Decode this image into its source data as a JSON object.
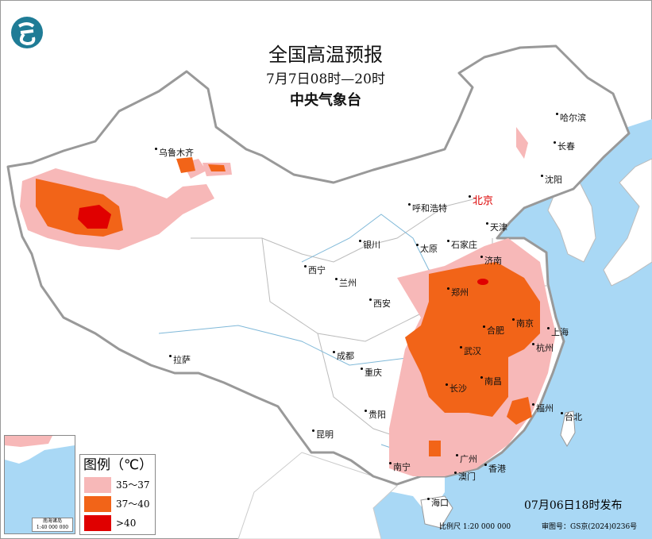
{
  "header": {
    "title": "全国高温预报",
    "period": "7月7日08时—20时",
    "agency": "中央气象台"
  },
  "colors": {
    "ocean": "#a9d8f5",
    "heat_35_37": "#f7b8b8",
    "heat_37_40": "#f26418",
    "heat_over_40": "#e00000",
    "capital": "#dd0000"
  },
  "cities": [
    {
      "name": "乌鲁木齐"
    },
    {
      "name": "哈尔滨"
    },
    {
      "name": "长春"
    },
    {
      "name": "沈阳"
    },
    {
      "name": "北京",
      "capital": true
    },
    {
      "name": "天津"
    },
    {
      "name": "呼和浩特"
    },
    {
      "name": "石家庄"
    },
    {
      "name": "太原"
    },
    {
      "name": "济南"
    },
    {
      "name": "银川"
    },
    {
      "name": "西宁"
    },
    {
      "name": "兰州"
    },
    {
      "name": "西安"
    },
    {
      "name": "郑州"
    },
    {
      "name": "南京"
    },
    {
      "name": "合肥"
    },
    {
      "name": "上海"
    },
    {
      "name": "杭州"
    },
    {
      "name": "武汉"
    },
    {
      "name": "成都"
    },
    {
      "name": "重庆"
    },
    {
      "name": "拉萨"
    },
    {
      "name": "长沙"
    },
    {
      "name": "南昌"
    },
    {
      "name": "福州"
    },
    {
      "name": "台北"
    },
    {
      "name": "贵阳"
    },
    {
      "name": "昆明"
    },
    {
      "name": "南宁"
    },
    {
      "name": "广州"
    },
    {
      "name": "澳门"
    },
    {
      "name": "香港"
    },
    {
      "name": "海口"
    }
  ],
  "legend": {
    "title": "图例（℃）",
    "items": [
      {
        "label": "35～37",
        "color": "#f7b8b8"
      },
      {
        "label": "37～40",
        "color": "#f26418"
      },
      {
        "label": ">40",
        "color": "#e00000"
      }
    ]
  },
  "inset": {
    "label": "南海诸岛",
    "scale": "1:40 000 000"
  },
  "footer": {
    "publish_time": "07月06日18时发布",
    "scale": "比例尺 1:20 000 000",
    "approval": "审图号：GS京(2024)0236号"
  }
}
